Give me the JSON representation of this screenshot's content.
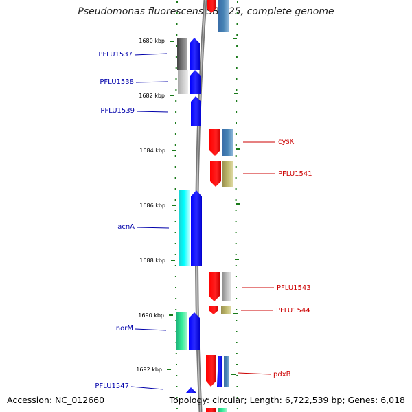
{
  "title": "Pseudomonas fluorescens SBW25, complete genome",
  "footer": {
    "accession": "Accession: NC_012660",
    "topology": "Topology: circular; Length: 6,722,539 bp; Genes: 6,018"
  },
  "kbp_labels": [
    "1680 kbp",
    "1682 kbp",
    "1684 kbp",
    "1686 kbp",
    "1688 kbp",
    "1690 kbp",
    "1692 kbp"
  ],
  "left_genes": [
    {
      "name": "PFLU1537",
      "color": "#0000aa"
    },
    {
      "name": "PFLU1538",
      "color": "#0000aa"
    },
    {
      "name": "PFLU1539",
      "color": "#0000aa"
    },
    {
      "name": "acnA",
      "color": "#0000aa"
    },
    {
      "name": "norM",
      "color": "#0000aa"
    },
    {
      "name": "PFLU1547",
      "color": "#0000aa"
    }
  ],
  "right_genes": [
    {
      "name": "cysK",
      "color": "#cc0000"
    },
    {
      "name": "PFLU1541",
      "color": "#cc0000"
    },
    {
      "name": "PFLU1543",
      "color": "#cc0000"
    },
    {
      "name": "PFLU1544",
      "color": "#cc0000"
    },
    {
      "name": "pdxB",
      "color": "#cc0000"
    }
  ]
}
